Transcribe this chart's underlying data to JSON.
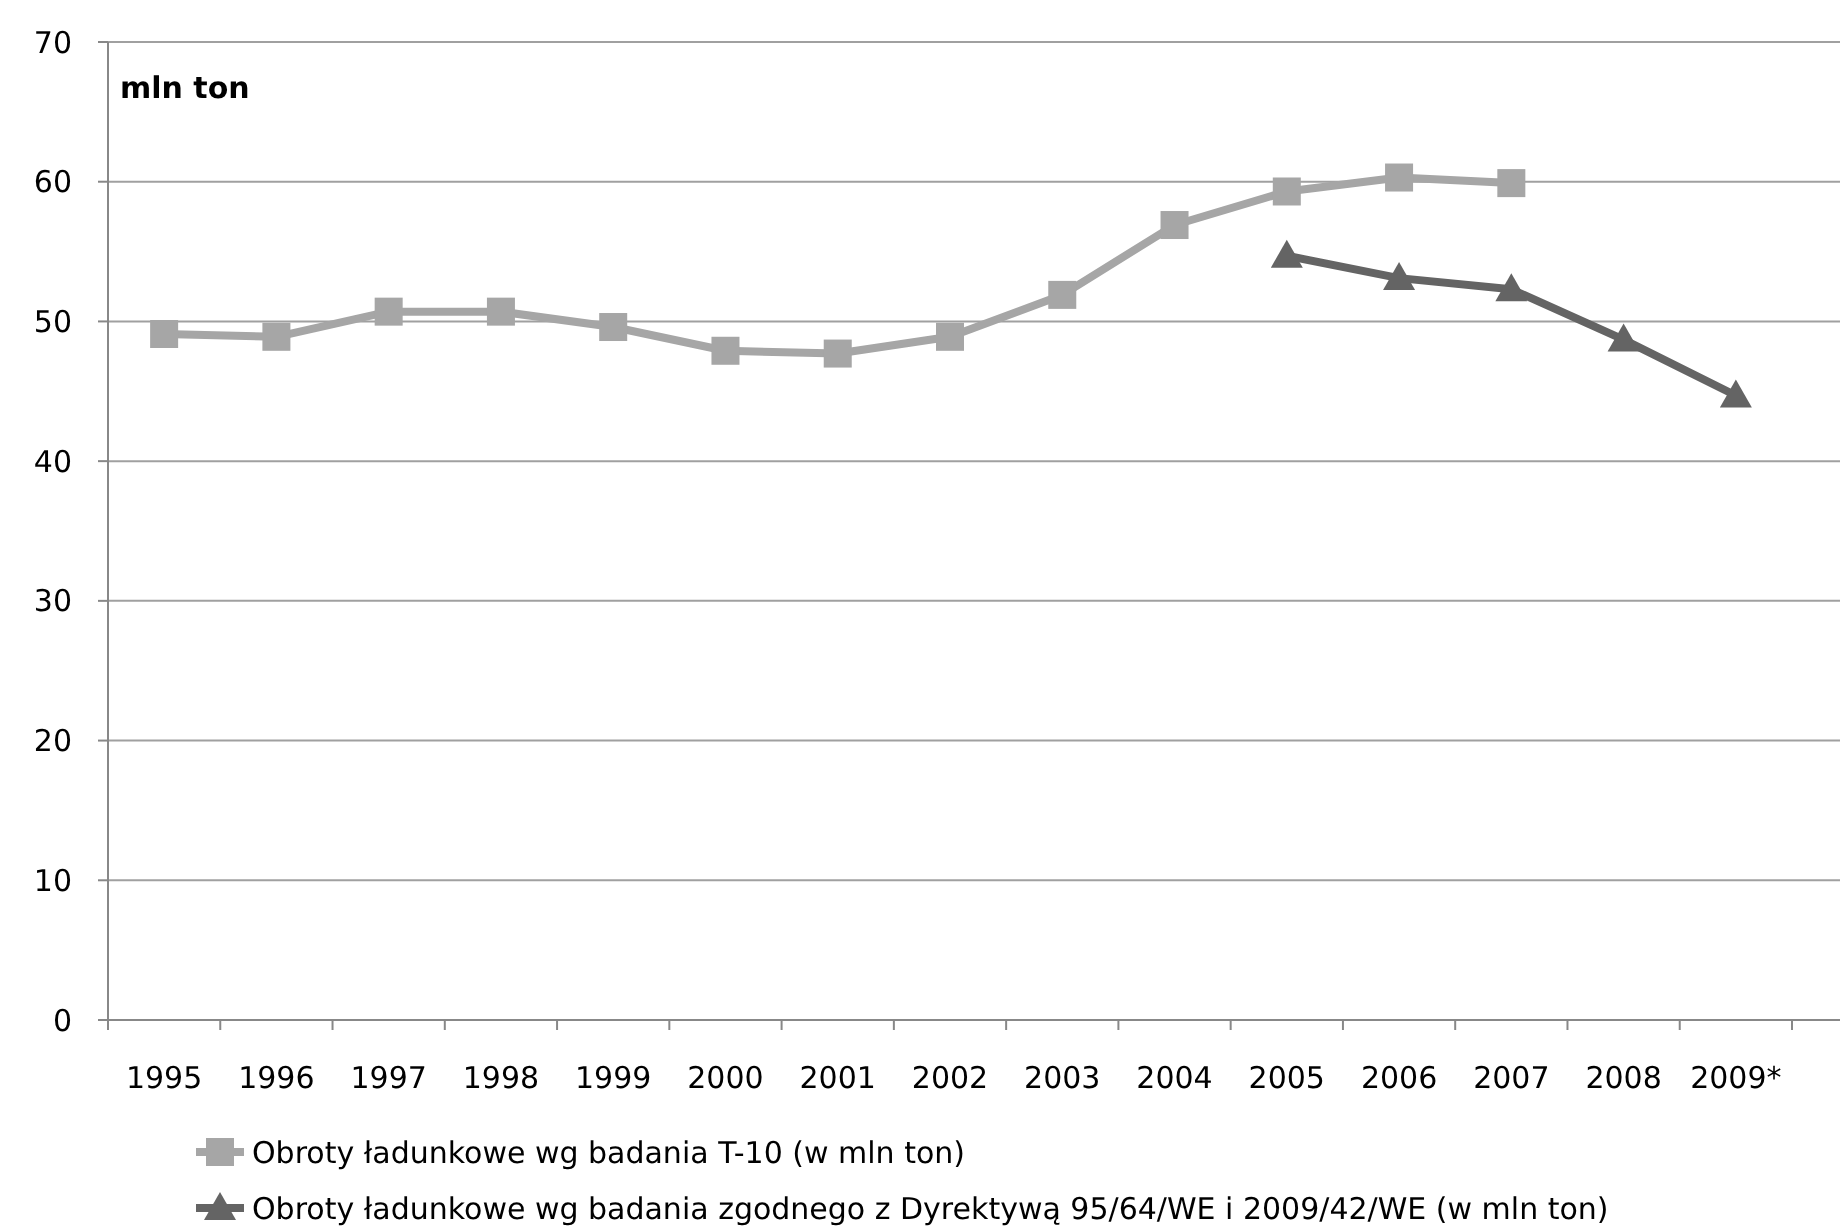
{
  "chart_data": {
    "type": "line",
    "ylabel": "mln ton",
    "categories": [
      "1995",
      "1996",
      "1997",
      "1998",
      "1999",
      "2000",
      "2001",
      "2002",
      "2003",
      "2004",
      "2005",
      "2006",
      "2007",
      "2008",
      "2009*"
    ],
    "series": [
      {
        "name": "Obroty ładunkowe wg badania T-10 (w mln ton)",
        "color": "#a6a6a6",
        "marker": "square",
        "values": [
          49.1,
          48.9,
          50.7,
          50.7,
          49.6,
          47.9,
          47.7,
          48.9,
          51.9,
          56.9,
          59.3,
          60.3,
          59.9,
          null,
          null
        ]
      },
      {
        "name": "Obroty ładunkowe wg badania zgodnego z Dyrektywą 95/64/WE i 2009/42/WE (w mln ton)",
        "color": "#646464",
        "marker": "triangle",
        "values": [
          null,
          null,
          null,
          null,
          null,
          null,
          null,
          null,
          null,
          null,
          54.7,
          53.1,
          52.3,
          48.7,
          44.7
        ]
      }
    ],
    "ylim": [
      0,
      70
    ],
    "yticks": [
      0,
      10,
      20,
      30,
      40,
      50,
      60,
      70
    ],
    "grid": "y",
    "legend": "bottom"
  }
}
